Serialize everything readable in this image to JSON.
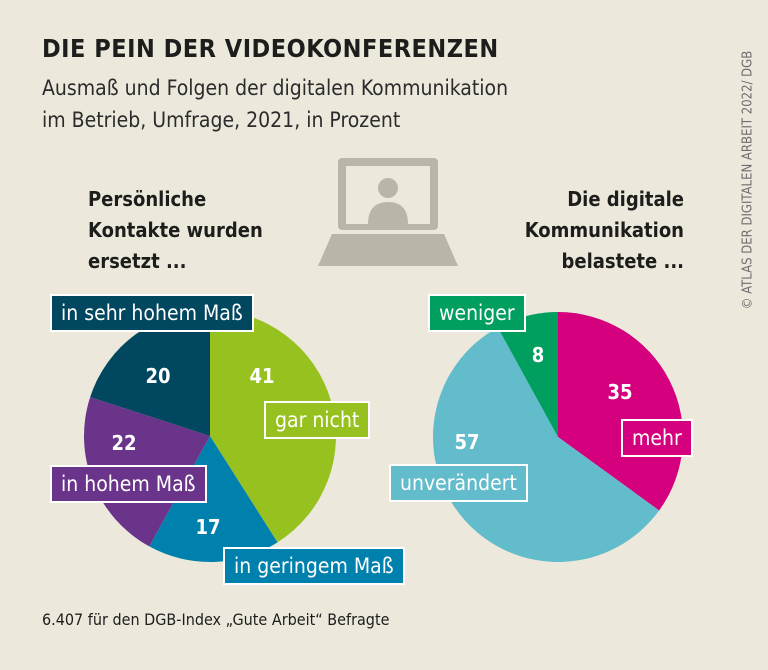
{
  "title": "DIE PEIN DER VIDEOKONFERENZEN",
  "subtitle_lines": [
    "Ausmaß und Folgen der digitalen Kommunikation",
    "im Betrieb, Umfrage, 2021, in Prozent"
  ],
  "credit": "© ATLAS DER DIGITALEN ARBEIT 2022/ DGB",
  "footer": "6.407 für den DGB-Index „Gute Arbeit“ Befragte",
  "icon": "laptop-video-call-icon",
  "chart_data": [
    {
      "type": "pie",
      "title_lines": [
        "Persönliche",
        "Kontakte wurden",
        "ersetzt ..."
      ],
      "slices": [
        {
          "label": "gar nicht",
          "value": 41,
          "color": "#97c11f"
        },
        {
          "label": "in geringem Maß",
          "value": 17,
          "color": "#0081ad"
        },
        {
          "label": "in hohem Maß",
          "value": 22,
          "color": "#6b348b"
        },
        {
          "label": "in sehr hohem Maß",
          "value": 20,
          "color": "#00475f"
        }
      ]
    },
    {
      "type": "pie",
      "title_lines": [
        "Die digitale",
        "Kommunikation",
        "belastete ..."
      ],
      "slices": [
        {
          "label": "mehr",
          "value": 35,
          "color": "#d4007d"
        },
        {
          "label": "unverändert",
          "value": 57,
          "color": "#62bccb"
        },
        {
          "label": "weniger",
          "value": 8,
          "color": "#009e5f"
        }
      ]
    }
  ]
}
